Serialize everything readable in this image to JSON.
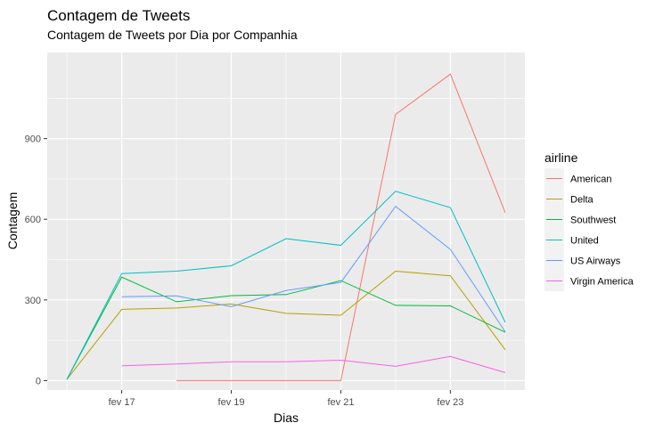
{
  "chart_data": {
    "type": "line",
    "title": "Contagem de Tweets",
    "subtitle": "Contagem de Tweets por Dia por Companhia",
    "xlabel": "Dias",
    "ylabel": "Contagem",
    "x": [
      "2015-02-16",
      "2015-02-17",
      "2015-02-18",
      "2015-02-19",
      "2015-02-20",
      "2015-02-21",
      "2015-02-22",
      "2015-02-23",
      "2015-02-24"
    ],
    "x_ticks": [
      {
        "date": "2015-02-17",
        "label": "fev 17"
      },
      {
        "date": "2015-02-19",
        "label": "fev 19"
      },
      {
        "date": "2015-02-21",
        "label": "fev 21"
      },
      {
        "date": "2015-02-23",
        "label": "fev 23"
      }
    ],
    "y_ticks": [
      0,
      300,
      600,
      900
    ],
    "ylim": [
      -35,
      1220
    ],
    "grid": true,
    "legend": {
      "title": "airline",
      "position": "right"
    },
    "series": [
      {
        "name": "American",
        "color": "#F8766D",
        "values": [
          null,
          null,
          0,
          0,
          0,
          0,
          990,
          1140,
          625
        ]
      },
      {
        "name": "Delta",
        "color": "#B79F00",
        "values": [
          5,
          265,
          270,
          285,
          250,
          243,
          407,
          390,
          115
        ]
      },
      {
        "name": "Southwest",
        "color": "#00BA38",
        "values": [
          5,
          385,
          293,
          316,
          320,
          372,
          280,
          278,
          180
        ]
      },
      {
        "name": "United",
        "color": "#00BFC4",
        "values": [
          5,
          398,
          407,
          427,
          528,
          503,
          704,
          643,
          217
        ]
      },
      {
        "name": "US Airways",
        "color": "#619CFF",
        "values": [
          null,
          312,
          315,
          275,
          335,
          365,
          648,
          488,
          182
        ]
      },
      {
        "name": "Virgin America",
        "color": "#F564E3",
        "values": [
          null,
          55,
          62,
          70,
          70,
          76,
          53,
          90,
          30
        ]
      }
    ]
  }
}
